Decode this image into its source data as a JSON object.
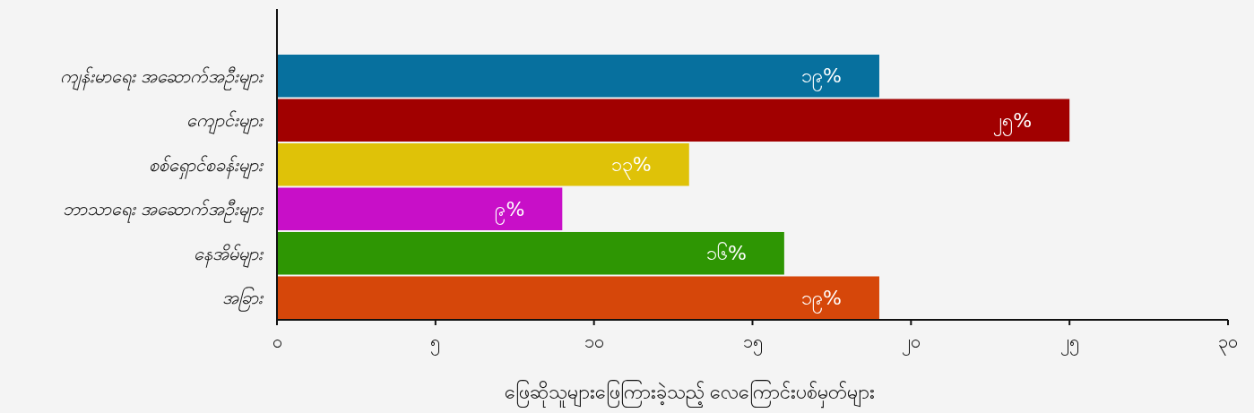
{
  "chart_data": {
    "type": "bar",
    "orientation": "horizontal",
    "xlabel": "ဖြေဆိုသူများဖြေကြားခဲ့သည့် လေကြောင်းပစ်မှတ်များ",
    "categories": [
      "ကျန်းမာရေး အဆောက်အဦးများ",
      "ကျောင်းများ",
      "စစ်ရှောင်စခန်းများ",
      "ဘာသာရေး အဆောက်အဦးများ",
      "နေအိမ်များ",
      "အခြား"
    ],
    "values": [
      19,
      25,
      13,
      9,
      16,
      19
    ],
    "colors": [
      "#07709e",
      "#a10000",
      "#dfc208",
      "#c80fc8",
      "#2e9603",
      "#d6470a"
    ],
    "value_labels": [
      "၁၉%",
      "၂၅%",
      "၁၃%",
      "၉%",
      "၁၆%",
      "၁၉%"
    ],
    "xlim": [
      0,
      30
    ],
    "xticks": [
      {
        "value": 0,
        "label": "၀"
      },
      {
        "value": 5,
        "label": "၅"
      },
      {
        "value": 10,
        "label": "၁၀"
      },
      {
        "value": 15,
        "label": "၁၅"
      },
      {
        "value": 20,
        "label": "၂၀"
      },
      {
        "value": 25,
        "label": "၂၅"
      },
      {
        "value": 30,
        "label": "၃၀"
      }
    ],
    "grid": false
  }
}
